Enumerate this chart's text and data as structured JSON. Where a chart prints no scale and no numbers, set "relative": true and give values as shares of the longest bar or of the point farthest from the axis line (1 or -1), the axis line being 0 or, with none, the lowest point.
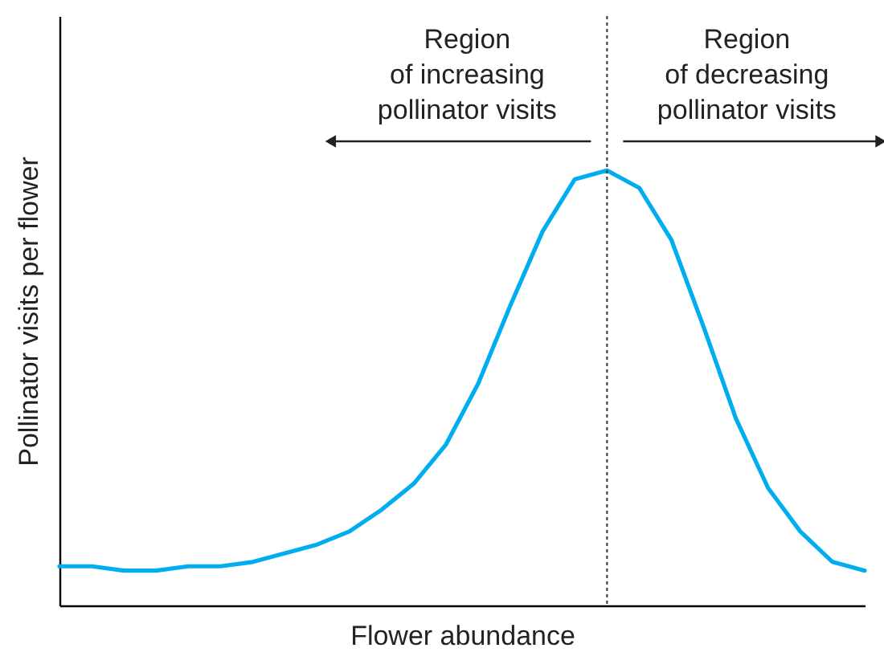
{
  "chart_data": {
    "type": "line",
    "xlabel": "Flower abundance",
    "ylabel": "Pollinator visits per flower",
    "relative": true,
    "line_style": "solid",
    "categories": [
      null,
      null,
      null,
      null,
      null,
      null,
      null,
      null,
      null,
      null,
      null,
      null,
      null,
      null,
      null,
      null,
      null,
      null,
      null,
      null,
      null,
      null,
      null,
      null,
      null,
      null
    ],
    "series": [
      {
        "color": "#00aeef",
        "values": [
          0.09,
          0.09,
          0.08,
          0.08,
          0.09,
          0.09,
          0.1,
          0.12,
          0.14,
          0.17,
          0.22,
          0.28,
          0.37,
          0.51,
          0.69,
          0.86,
          0.98,
          1,
          0.96,
          0.84,
          0.64,
          0.43,
          0.27,
          0.17,
          0.1,
          0.08
        ]
      }
    ],
    "ref_lines": [
      {
        "axis": "x",
        "line_style": "dotted",
        "color": "#333333"
      }
    ],
    "annotations": [
      "Region\nof increasing\npollinator visits",
      "Region\nof decreasing\npollinator visits"
    ]
  }
}
